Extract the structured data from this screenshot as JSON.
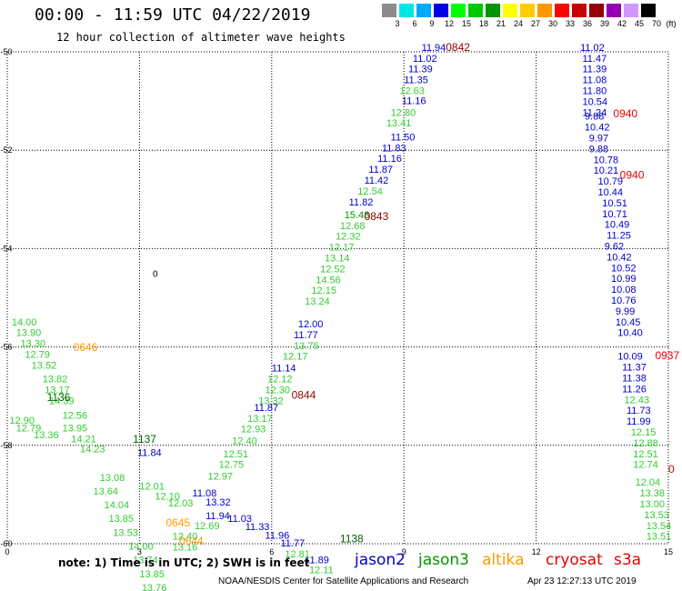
{
  "header": {
    "title": "00:00 - 11:59 UTC 04/22/2019",
    "subtitle": "12 hour collection of altimeter wave heights"
  },
  "colorbar": {
    "unit_label": "(ft)",
    "labels": [
      "3",
      "6",
      "9",
      "12",
      "15",
      "18",
      "21",
      "24",
      "27",
      "30",
      "33",
      "36",
      "39",
      "42",
      "45",
      "70"
    ],
    "colors": [
      "#8c8c8c",
      "#00e6e6",
      "#00aaff",
      "#0000e6",
      "#00ff00",
      "#00c800",
      "#009600",
      "#ffff00",
      "#ffcc00",
      "#ff9900",
      "#ff0000",
      "#c80000",
      "#960000",
      "#9600b4",
      "#d296ff",
      "#000000"
    ]
  },
  "axes": {
    "x_ticks": [
      "0",
      "3",
      "6",
      "9",
      "12",
      "15"
    ],
    "y_ticks": [
      "-50",
      "-52",
      "-54",
      "-56",
      "-58",
      "-60"
    ]
  },
  "legend": {
    "jason2": {
      "label": "jason2",
      "color": "#0000cc"
    },
    "jason3": {
      "label": "jason3",
      "color": "#009600"
    },
    "altika": {
      "label": "altika",
      "color": "#ff9900"
    },
    "cryosat": {
      "label": "cryosat",
      "color": "#e60000"
    },
    "s3a": {
      "label": "s3a",
      "color": "#e60000"
    }
  },
  "footer": {
    "note": "note: 1) Time is in UTC; 2) SWH is in feet",
    "credit": "NOAA/NESDIS Center for Satellite Applications and Research",
    "timestamp": "Apr 23 12:27:13 UTC 2019"
  },
  "map_marks": {
    "island_label": "0",
    "times": [
      {
        "t": "0842",
        "c": "#960000",
        "lon": 9.95,
        "lat": -49.98
      },
      {
        "t": "0940",
        "c": "#e60000",
        "lon": 13.75,
        "lat": -51.33
      },
      {
        "t": "0940",
        "c": "#e60000",
        "lon": 13.9,
        "lat": -52.58
      },
      {
        "t": "0843",
        "c": "#960000",
        "lon": 8.1,
        "lat": -53.42
      },
      {
        "t": "0646",
        "c": "#ff9900",
        "lon": 1.5,
        "lat": -56.08
      },
      {
        "t": "1136",
        "c": "#006400",
        "lon": 0.9,
        "lat": -57.1
      },
      {
        "t": "0844",
        "c": "#960000",
        "lon": 6.45,
        "lat": -57.05
      },
      {
        "t": "0937",
        "c": "#e60000",
        "lon": 14.7,
        "lat": -56.25
      },
      {
        "t": "1137",
        "c": "#006400",
        "lon": 2.85,
        "lat": -57.95
      },
      {
        "t": "0645",
        "c": "#ff9900",
        "lon": 3.6,
        "lat": -59.65
      },
      {
        "t": "0644",
        "c": "#ff9900",
        "lon": 3.9,
        "lat": -60.02
      },
      {
        "t": "1138",
        "c": "#006400",
        "lon": 7.55,
        "lat": -59.97
      },
      {
        "t": "0",
        "c": "#e60000",
        "lon": 15.0,
        "lat": -58.56
      }
    ],
    "values": [
      {
        "v": "11.94",
        "c": "#0000cc",
        "lon": 9.4,
        "lat": -49.98
      },
      {
        "v": "11.02",
        "c": "#0000cc",
        "lon": 9.2,
        "lat": -50.2
      },
      {
        "v": "11.39",
        "c": "#0000cc",
        "lon": 9.1,
        "lat": -50.42
      },
      {
        "v": "11.35",
        "c": "#0000cc",
        "lon": 9.0,
        "lat": -50.64
      },
      {
        "v": "11.16",
        "c": "#0000cc",
        "lon": 8.95,
        "lat": -51.06
      },
      {
        "v": "11.50",
        "c": "#0000cc",
        "lon": 8.7,
        "lat": -51.8
      },
      {
        "v": "11.83",
        "c": "#0000cc",
        "lon": 8.5,
        "lat": -52.02
      },
      {
        "v": "11.16",
        "c": "#0000cc",
        "lon": 8.4,
        "lat": -52.24
      },
      {
        "v": "11.87",
        "c": "#0000cc",
        "lon": 8.2,
        "lat": -52.46
      },
      {
        "v": "11.42",
        "c": "#0000cc",
        "lon": 8.1,
        "lat": -52.68
      },
      {
        "v": "11.82",
        "c": "#0000cc",
        "lon": 7.75,
        "lat": -53.12
      },
      {
        "v": "12.00",
        "c": "#0000cc",
        "lon": 6.6,
        "lat": -55.6
      },
      {
        "v": "11.77",
        "c": "#0000cc",
        "lon": 6.5,
        "lat": -55.82
      },
      {
        "v": "11.14",
        "c": "#0000cc",
        "lon": 6.0,
        "lat": -56.5
      },
      {
        "v": "11.87",
        "c": "#0000cc",
        "lon": 5.6,
        "lat": -57.3
      },
      {
        "v": "11.84",
        "c": "#0000cc",
        "lon": 2.95,
        "lat": -58.22
      },
      {
        "v": "11.08",
        "c": "#0000cc",
        "lon": 4.2,
        "lat": -59.04
      },
      {
        "v": "13.32",
        "c": "#0000cc",
        "lon": 4.5,
        "lat": -59.22
      },
      {
        "v": "11.94",
        "c": "#0000cc",
        "lon": 4.5,
        "lat": -59.5
      },
      {
        "v": "11.03",
        "c": "#0000cc",
        "lon": 5.0,
        "lat": -59.56
      },
      {
        "v": "11.33",
        "c": "#0000cc",
        "lon": 5.4,
        "lat": -59.72
      },
      {
        "v": "11.96",
        "c": "#0000cc",
        "lon": 5.85,
        "lat": -59.9
      },
      {
        "v": "11.77",
        "c": "#0000cc",
        "lon": 6.2,
        "lat": -60.06
      },
      {
        "v": "11.89",
        "c": "#0000cc",
        "lon": 6.75,
        "lat": -60.4
      },
      {
        "v": "11.02",
        "c": "#0000cc",
        "lon": 13.0,
        "lat": -49.98
      },
      {
        "v": "11.47",
        "c": "#0000cc",
        "lon": 13.05,
        "lat": -50.2
      },
      {
        "v": "11.39",
        "c": "#0000cc",
        "lon": 13.05,
        "lat": -50.42
      },
      {
        "v": "11.08",
        "c": "#0000cc",
        "lon": 13.05,
        "lat": -50.64
      },
      {
        "v": "11.80",
        "c": "#0000cc",
        "lon": 13.05,
        "lat": -50.86
      },
      {
        "v": "10.54",
        "c": "#0000cc",
        "lon": 13.05,
        "lat": -51.08
      },
      {
        "v": "11.24",
        "c": "#0000cc",
        "lon": 13.05,
        "lat": -51.3
      },
      {
        "v": "9.88",
        "c": "#0000cc",
        "lon": 13.1,
        "lat": -51.38
      },
      {
        "v": "10.42",
        "c": "#0000cc",
        "lon": 13.1,
        "lat": -51.6
      },
      {
        "v": "9.97",
        "c": "#0000cc",
        "lon": 13.2,
        "lat": -51.82
      },
      {
        "v": "9.88",
        "c": "#0000cc",
        "lon": 13.2,
        "lat": -52.04
      },
      {
        "v": "10.78",
        "c": "#0000cc",
        "lon": 13.3,
        "lat": -52.26
      },
      {
        "v": "10.21",
        "c": "#0000cc",
        "lon": 13.3,
        "lat": -52.48
      },
      {
        "v": "10.79",
        "c": "#0000cc",
        "lon": 13.4,
        "lat": -52.7
      },
      {
        "v": "10.44",
        "c": "#0000cc",
        "lon": 13.4,
        "lat": -52.92
      },
      {
        "v": "10.51",
        "c": "#0000cc",
        "lon": 13.5,
        "lat": -53.14
      },
      {
        "v": "10.71",
        "c": "#0000cc",
        "lon": 13.5,
        "lat": -53.36
      },
      {
        "v": "10.49",
        "c": "#0000cc",
        "lon": 13.55,
        "lat": -53.58
      },
      {
        "v": "11.25",
        "c": "#0000cc",
        "lon": 13.6,
        "lat": -53.8
      },
      {
        "v": "9.62",
        "c": "#0000cc",
        "lon": 13.55,
        "lat": -54.02
      },
      {
        "v": "10.42",
        "c": "#0000cc",
        "lon": 13.6,
        "lat": -54.24
      },
      {
        "v": "10.52",
        "c": "#0000cc",
        "lon": 13.7,
        "lat": -54.46
      },
      {
        "v": "10.99",
        "c": "#0000cc",
        "lon": 13.7,
        "lat": -54.68
      },
      {
        "v": "10.08",
        "c": "#0000cc",
        "lon": 13.7,
        "lat": -54.9
      },
      {
        "v": "10.76",
        "c": "#0000cc",
        "lon": 13.7,
        "lat": -55.12
      },
      {
        "v": "9.99",
        "c": "#0000cc",
        "lon": 13.8,
        "lat": -55.34
      },
      {
        "v": "10.45",
        "c": "#0000cc",
        "lon": 13.8,
        "lat": -55.56
      },
      {
        "v": "10.40",
        "c": "#0000cc",
        "lon": 13.85,
        "lat": -55.78
      },
      {
        "v": "10.09",
        "c": "#0000cc",
        "lon": 13.85,
        "lat": -56.26
      },
      {
        "v": "11.37",
        "c": "#0000cc",
        "lon": 13.95,
        "lat": -56.48
      },
      {
        "v": "11.38",
        "c": "#0000cc",
        "lon": 13.95,
        "lat": -56.7
      },
      {
        "v": "11.26",
        "c": "#0000cc",
        "lon": 13.95,
        "lat": -56.92
      },
      {
        "v": "11.73",
        "c": "#0000cc",
        "lon": 14.05,
        "lat": -57.36
      },
      {
        "v": "11.99",
        "c": "#0000cc",
        "lon": 14.05,
        "lat": -57.58
      },
      {
        "v": "12.63",
        "c": "#33cc33",
        "lon": 8.9,
        "lat": -50.86
      },
      {
        "v": "12.80",
        "c": "#33cc33",
        "lon": 8.7,
        "lat": -51.3
      },
      {
        "v": "13.41",
        "c": "#33cc33",
        "lon": 8.6,
        "lat": -51.52
      },
      {
        "v": "12.54",
        "c": "#33cc33",
        "lon": 7.95,
        "lat": -52.9
      },
      {
        "v": "15.48",
        "c": "#009600",
        "lon": 7.65,
        "lat": -53.38
      },
      {
        "v": "12.68",
        "c": "#33cc33",
        "lon": 7.55,
        "lat": -53.6
      },
      {
        "v": "12.32",
        "c": "#33cc33",
        "lon": 7.45,
        "lat": -53.82
      },
      {
        "v": "12.17",
        "c": "#33cc33",
        "lon": 7.3,
        "lat": -54.04
      },
      {
        "v": "13.14",
        "c": "#33cc33",
        "lon": 7.2,
        "lat": -54.26
      },
      {
        "v": "12.52",
        "c": "#33cc33",
        "lon": 7.1,
        "lat": -54.48
      },
      {
        "v": "14.56",
        "c": "#33cc33",
        "lon": 7.0,
        "lat": -54.7
      },
      {
        "v": "12.15",
        "c": "#33cc33",
        "lon": 6.9,
        "lat": -54.92
      },
      {
        "v": "13.24",
        "c": "#33cc33",
        "lon": 6.75,
        "lat": -55.14
      },
      {
        "v": "13.75",
        "c": "#33cc33",
        "lon": 6.5,
        "lat": -56.04
      },
      {
        "v": "12.17",
        "c": "#33cc33",
        "lon": 6.25,
        "lat": -56.26
      },
      {
        "v": "12.12",
        "c": "#33cc33",
        "lon": 5.9,
        "lat": -56.72
      },
      {
        "v": "12.30",
        "c": "#33cc33",
        "lon": 5.85,
        "lat": -56.94
      },
      {
        "v": "13.32",
        "c": "#33cc33",
        "lon": 5.7,
        "lat": -57.16
      },
      {
        "v": "13.17",
        "c": "#33cc33",
        "lon": 5.45,
        "lat": -57.52
      },
      {
        "v": "12.93",
        "c": "#33cc33",
        "lon": 5.3,
        "lat": -57.74
      },
      {
        "v": "12.40",
        "c": "#33cc33",
        "lon": 5.1,
        "lat": -57.98
      },
      {
        "v": "12.51",
        "c": "#33cc33",
        "lon": 4.9,
        "lat": -58.24
      },
      {
        "v": "12.75",
        "c": "#33cc33",
        "lon": 4.8,
        "lat": -58.46
      },
      {
        "v": "12.97",
        "c": "#33cc33",
        "lon": 4.55,
        "lat": -58.7
      },
      {
        "v": "12.69",
        "c": "#33cc33",
        "lon": 4.25,
        "lat": -59.7
      },
      {
        "v": "12.40",
        "c": "#33cc33",
        "lon": 3.75,
        "lat": -59.92
      },
      {
        "v": "13.16",
        "c": "#33cc33",
        "lon": 3.75,
        "lat": -60.14
      },
      {
        "v": "12.81",
        "c": "#33cc33",
        "lon": 6.3,
        "lat": -60.28
      },
      {
        "v": "12.11",
        "c": "#33cc33",
        "lon": 6.85,
        "lat": -60.6
      },
      {
        "v": "14.00",
        "c": "#33cc33",
        "lon": 0.1,
        "lat": -55.56
      },
      {
        "v": "13.90",
        "c": "#33cc33",
        "lon": 0.2,
        "lat": -55.78
      },
      {
        "v": "13.30",
        "c": "#33cc33",
        "lon": 0.3,
        "lat": -56.0
      },
      {
        "v": "12.79",
        "c": "#33cc33",
        "lon": 0.4,
        "lat": -56.22
      },
      {
        "v": "13.52",
        "c": "#33cc33",
        "lon": 0.55,
        "lat": -56.44
      },
      {
        "v": "13.82",
        "c": "#33cc33",
        "lon": 0.8,
        "lat": -56.72
      },
      {
        "v": "13.17",
        "c": "#33cc33",
        "lon": 0.85,
        "lat": -56.94
      },
      {
        "v": "14.39",
        "c": "#33cc33",
        "lon": 0.95,
        "lat": -57.16
      },
      {
        "v": "12.90",
        "c": "#33cc33",
        "lon": 0.05,
        "lat": -57.56
      },
      {
        "v": "12.79",
        "c": "#33cc33",
        "lon": 0.2,
        "lat": -57.72
      },
      {
        "v": "13.36",
        "c": "#33cc33",
        "lon": 0.6,
        "lat": -57.86
      },
      {
        "v": "12.56",
        "c": "#33cc33",
        "lon": 1.25,
        "lat": -57.46
      },
      {
        "v": "13.95",
        "c": "#33cc33",
        "lon": 1.25,
        "lat": -57.72
      },
      {
        "v": "14.21",
        "c": "#33cc33",
        "lon": 1.45,
        "lat": -57.94
      },
      {
        "v": "14.23",
        "c": "#33cc33",
        "lon": 1.65,
        "lat": -58.14
      },
      {
        "v": "13.08",
        "c": "#33cc33",
        "lon": 2.1,
        "lat": -58.72
      },
      {
        "v": "13.64",
        "c": "#33cc33",
        "lon": 1.95,
        "lat": -59.0
      },
      {
        "v": "12.01",
        "c": "#33cc33",
        "lon": 3.0,
        "lat": -58.9
      },
      {
        "v": "12.10",
        "c": "#33cc33",
        "lon": 3.35,
        "lat": -59.1
      },
      {
        "v": "12.03",
        "c": "#33cc33",
        "lon": 3.65,
        "lat": -59.24
      },
      {
        "v": "14.04",
        "c": "#33cc33",
        "lon": 2.2,
        "lat": -59.28
      },
      {
        "v": "13.85",
        "c": "#33cc33",
        "lon": 2.3,
        "lat": -59.56
      },
      {
        "v": "13.53",
        "c": "#33cc33",
        "lon": 2.4,
        "lat": -59.84
      },
      {
        "v": "14.00",
        "c": "#33cc33",
        "lon": 2.75,
        "lat": -60.12
      },
      {
        "v": "13.74",
        "c": "#33cc33",
        "lon": 2.85,
        "lat": -60.4
      },
      {
        "v": "13.85",
        "c": "#33cc33",
        "lon": 3.0,
        "lat": -60.68
      },
      {
        "v": "13.76",
        "c": "#33cc33",
        "lon": 3.05,
        "lat": -60.96
      },
      {
        "v": "12.43",
        "c": "#33cc33",
        "lon": 14.0,
        "lat": -57.14
      },
      {
        "v": "12.15",
        "c": "#33cc33",
        "lon": 14.15,
        "lat": -57.8
      },
      {
        "v": "12.88",
        "c": "#33cc33",
        "lon": 14.2,
        "lat": -58.02
      },
      {
        "v": "12.51",
        "c": "#33cc33",
        "lon": 14.2,
        "lat": -58.24
      },
      {
        "v": "12.74",
        "c": "#33cc33",
        "lon": 14.2,
        "lat": -58.46
      },
      {
        "v": "12.04",
        "c": "#33cc33",
        "lon": 14.25,
        "lat": -58.82
      },
      {
        "v": "13.38",
        "c": "#33cc33",
        "lon": 14.35,
        "lat": -59.04
      },
      {
        "v": "13.00",
        "c": "#33cc33",
        "lon": 14.35,
        "lat": -59.26
      },
      {
        "v": "13.53",
        "c": "#33cc33",
        "lon": 14.45,
        "lat": -59.48
      },
      {
        "v": "13.54",
        "c": "#33cc33",
        "lon": 14.5,
        "lat": -59.7
      },
      {
        "v": "13.51",
        "c": "#33cc33",
        "lon": 14.5,
        "lat": -59.92
      }
    ]
  }
}
